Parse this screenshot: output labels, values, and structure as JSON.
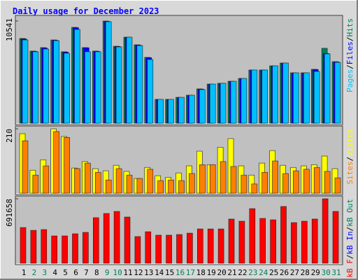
{
  "chart_data": {
    "type": "bar",
    "title": "Daily usage for December 2023",
    "title_color": "#0000ff",
    "categories": [
      "1",
      "2",
      "3",
      "4",
      "5",
      "6",
      "7",
      "8",
      "9",
      "10",
      "11",
      "12",
      "13",
      "14",
      "15",
      "16",
      "17",
      "18",
      "19",
      "20",
      "21",
      "22",
      "23",
      "24",
      "25",
      "26",
      "27",
      "28",
      "29",
      "30",
      "31"
    ],
    "category_colors": [
      "#000000",
      "#00805c",
      "#00805c",
      "#000000",
      "#000000",
      "#000000",
      "#000000",
      "#000000",
      "#00805c",
      "#00805c",
      "#000000",
      "#000000",
      "#000000",
      "#000000",
      "#000000",
      "#00805c",
      "#00805c",
      "#000000",
      "#000000",
      "#000000",
      "#000000",
      "#000000",
      "#00805c",
      "#00805c",
      "#000000",
      "#000000",
      "#000000",
      "#000000",
      "#000000",
      "#00805c",
      "#00805c"
    ],
    "legend_separator": "/",
    "panels": [
      {
        "ylim": [
          0,
          10541
        ],
        "yticks": [
          10541
        ],
        "series": [
          {
            "name": "Hits",
            "color": "#00805c",
            "values": [
              8740,
              7440,
              7800,
              8590,
              7370,
              9890,
              7800,
              7440,
              10541,
              7940,
              8880,
              8090,
              6790,
              2460,
              2460,
              2670,
              2890,
              3540,
              4040,
              4120,
              4330,
              4620,
              5490,
              5490,
              5920,
              6210,
              5200,
              5200,
              5560,
              7730,
              6350
            ]
          },
          {
            "name": "Files",
            "color": "#0000ff",
            "values": [
              8700,
              7420,
              7750,
              8560,
              7340,
              9850,
              7780,
              7420,
              10500,
              7920,
              8860,
              8060,
              6760,
              2440,
              2440,
              2650,
              2870,
              3520,
              4020,
              4100,
              4310,
              4600,
              5470,
              5470,
              5900,
              6190,
              5180,
              5180,
              5540,
              7200,
              6330
            ]
          },
          {
            "name": "Pages",
            "color": "#00c0ff",
            "values": [
              8590,
              7370,
              7650,
              8520,
              7220,
              9670,
              7370,
              7370,
              10470,
              7870,
              8880,
              8010,
              6570,
              2460,
              2460,
              2670,
              2890,
              3470,
              4040,
              4120,
              4330,
              4620,
              5490,
              5490,
              5920,
              6210,
              5200,
              5200,
              5340,
              7150,
              6280
            ]
          }
        ]
      },
      {
        "ylim": [
          0,
          210
        ],
        "yticks": [
          210
        ],
        "series": [
          {
            "name": "Visits",
            "color": "#ffff00",
            "values": [
              194,
              75,
              109,
              210,
              185,
              82,
              103,
              80,
              73,
              91,
              71,
              48,
              84,
              57,
              52,
              66,
              89,
              137,
              93,
              150,
              178,
              89,
              59,
              98,
              139,
              91,
              84,
              89,
              93,
              121,
              80
            ]
          },
          {
            "name": "Sites",
            "color": "#ff8000",
            "values": [
              171,
              59,
              89,
              201,
              182,
              80,
              98,
              68,
              43,
              80,
              59,
              48,
              78,
              41,
              43,
              41,
              64,
              93,
              93,
              103,
              87,
              59,
              30,
              68,
              105,
              64,
              73,
              78,
              84,
              71,
              50
            ]
          }
        ]
      },
      {
        "ylim": [
          0,
          691658
        ],
        "yticks": [
          691658
        ],
        "series": [
          {
            "name": "kB F",
            "color": "#ff0000",
            "values": [
              383000,
              353000,
              361000,
              293000,
              293000,
              316000,
              331000,
              489000,
              534000,
              556000,
              496000,
              286000,
              338000,
              301000,
              301000,
              308000,
              323000,
              368000,
              368000,
              368000,
              474000,
              451000,
              586000,
              481000,
              466000,
              609000,
              436000,
              451000,
              474000,
              691658,
              556000
            ]
          }
        ],
        "legend_only": [
          {
            "name": "kB In",
            "color": "#0000ff"
          },
          {
            "name": "kB Out",
            "color": "#00805c"
          }
        ]
      }
    ]
  }
}
